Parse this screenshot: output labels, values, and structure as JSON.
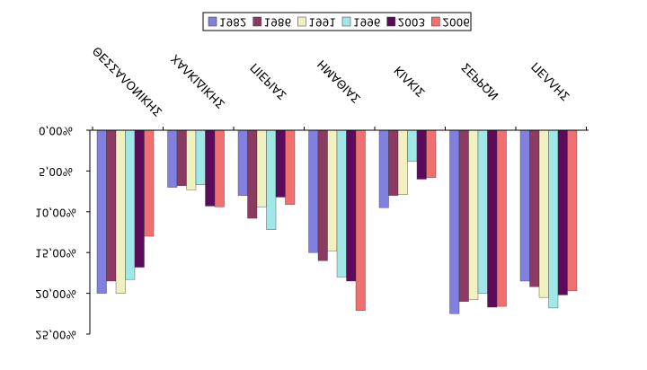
{
  "chart_data": {
    "type": "bar",
    "y_axis_inverted": true,
    "ylim": [
      0,
      25
    ],
    "yticks": [
      "0,00%",
      "5,00%",
      "10,00%",
      "15,00%",
      "20,00%",
      "25,00%"
    ],
    "categories": [
      "ΘΕΣΣΑΛΟΝΙΚΗΣ",
      "ΧΑΛΚΙΔΙΚΗΣ",
      "ΠΙΕΡΙΑΣ",
      "ΗΜΑΘΙΑΣ",
      "ΚΙΛΚΙΣ",
      "ΣΕΡΡΩΝ",
      "ΠΕΛΛΗΣ"
    ],
    "legend_position": "top",
    "series": [
      {
        "name": "1982",
        "color": "#8080E0",
        "values": [
          20.0,
          7.0,
          8.0,
          15.0,
          9.5,
          22.5,
          18.5
        ]
      },
      {
        "name": "1986",
        "color": "#8B3A62",
        "values": [
          18.5,
          6.8,
          10.8,
          16.0,
          8.0,
          21.0,
          19.2
        ]
      },
      {
        "name": "1991",
        "color": "#F0F0C0",
        "values": [
          20.0,
          7.3,
          9.4,
          14.8,
          7.9,
          20.8,
          20.5
        ]
      },
      {
        "name": "1996",
        "color": "#A0E8E8",
        "values": [
          18.3,
          6.7,
          12.2,
          18.0,
          3.8,
          20.0,
          21.8
        ]
      },
      {
        "name": "2003",
        "color": "#5C0A5C",
        "values": [
          16.8,
          9.3,
          8.2,
          18.5,
          6.0,
          21.7,
          20.2
        ]
      },
      {
        "name": "2006",
        "color": "#F07070",
        "values": [
          13.0,
          9.4,
          9.1,
          22.1,
          5.8,
          21.6,
          19.7
        ]
      }
    ]
  }
}
